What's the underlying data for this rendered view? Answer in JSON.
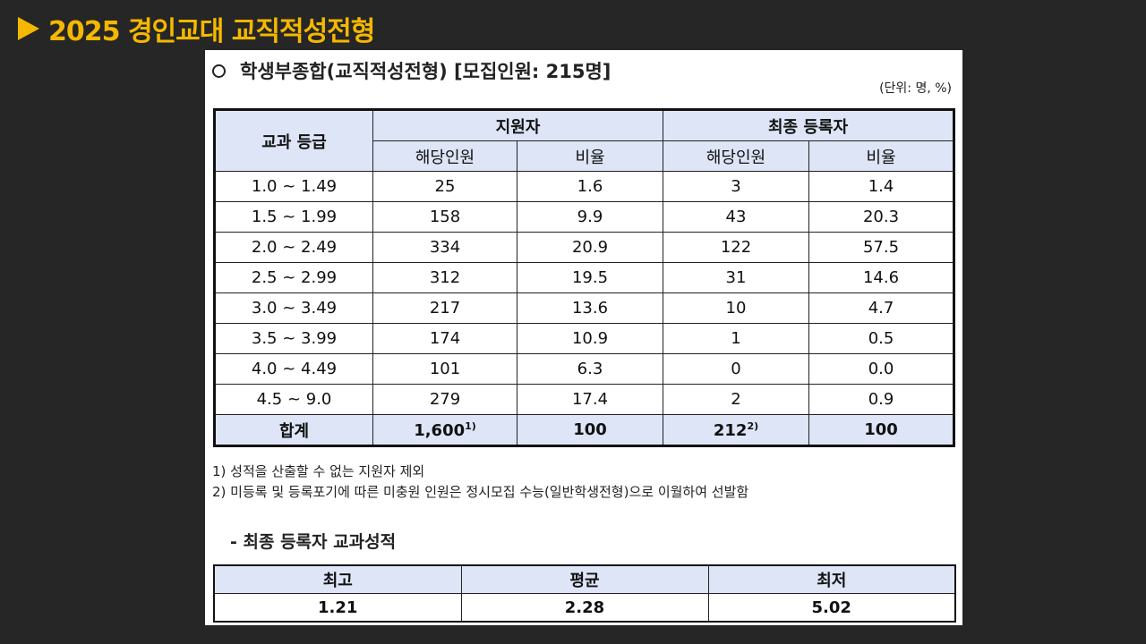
{
  "slide": {
    "title": "2025 경인교대 교직적성전형"
  },
  "document": {
    "heading": "학생부종합(교직적성전형) [모집인원: 215명]",
    "unit": "(단위: 명, %)",
    "table": {
      "grade_header": "교과 등급",
      "group_applicants": "지원자",
      "group_registered": "최종 등록자",
      "sub_count": "해당인원",
      "sub_ratio": "비율",
      "rows": [
        {
          "grade": "1.0 ~ 1.49",
          "app_count": "25",
          "app_ratio": "1.6",
          "reg_count": "3",
          "reg_ratio": "1.4"
        },
        {
          "grade": "1.5 ~ 1.99",
          "app_count": "158",
          "app_ratio": "9.9",
          "reg_count": "43",
          "reg_ratio": "20.3"
        },
        {
          "grade": "2.0 ~ 2.49",
          "app_count": "334",
          "app_ratio": "20.9",
          "reg_count": "122",
          "reg_ratio": "57.5"
        },
        {
          "grade": "2.5 ~ 2.99",
          "app_count": "312",
          "app_ratio": "19.5",
          "reg_count": "31",
          "reg_ratio": "14.6"
        },
        {
          "grade": "3.0 ~ 3.49",
          "app_count": "217",
          "app_ratio": "13.6",
          "reg_count": "10",
          "reg_ratio": "4.7"
        },
        {
          "grade": "3.5 ~ 3.99",
          "app_count": "174",
          "app_ratio": "10.9",
          "reg_count": "1",
          "reg_ratio": "0.5"
        },
        {
          "grade": "4.0 ~ 4.49",
          "app_count": "101",
          "app_ratio": "6.3",
          "reg_count": "0",
          "reg_ratio": "0.0"
        },
        {
          "grade": "4.5 ~ 9.0",
          "app_count": "279",
          "app_ratio": "17.4",
          "reg_count": "2",
          "reg_ratio": "0.9"
        }
      ],
      "total": {
        "label": "합계",
        "app_count": "1,600",
        "app_count_note": "1)",
        "app_ratio": "100",
        "reg_count": "212",
        "reg_count_note": "2)",
        "reg_ratio": "100"
      }
    },
    "footnotes": [
      "1) 성적을 산출할 수 없는 지원자 제외",
      "2) 미등록 및 등록포기에 따른 미충원 인원은 정시모집 수능(일반학생전형)으로 이월하여 선발함"
    ],
    "grades_section": {
      "label": "- 최종 등록자 교과성적",
      "headers": [
        "최고",
        "평균",
        "최저"
      ],
      "values": [
        "1.21",
        "2.28",
        "5.02"
      ]
    }
  }
}
